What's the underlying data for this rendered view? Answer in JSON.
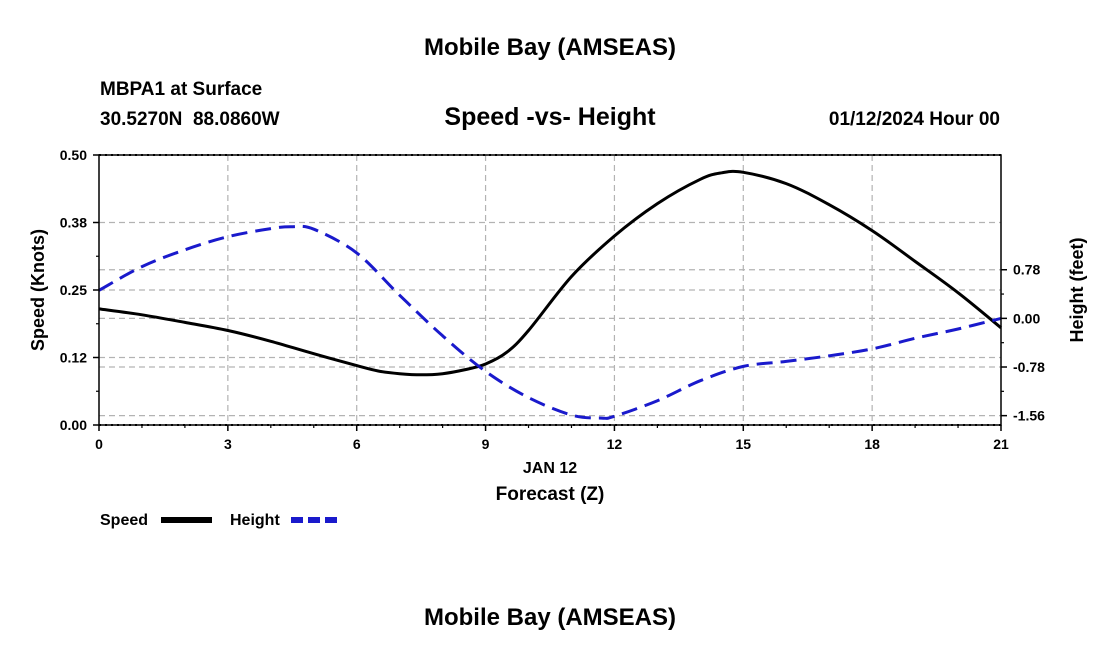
{
  "page_title": "Mobile Bay (AMSEAS)",
  "footer_title": "Mobile Bay (AMSEAS)",
  "station": {
    "name": "MBPA1 at Surface",
    "coordinates": "30.5270N  88.0860W"
  },
  "date_label": "01/12/2024 Hour 00",
  "chart_data": {
    "type": "line",
    "title": "Speed -vs- Height",
    "xlabel": "Forecast (Z)",
    "x_date_label": "JAN 12",
    "ylabel": "Speed (Knots)",
    "y2label": "Height (feet)",
    "xlim": [
      0,
      21
    ],
    "ylim": [
      0,
      0.5
    ],
    "y2lim": [
      -1.71,
      2.62
    ],
    "grid": true,
    "legend_position": "bottom-left",
    "x_ticks": [
      0,
      3,
      6,
      9,
      12,
      15,
      18,
      21
    ],
    "x_tick_labels": [
      "0",
      "3",
      "6",
      "9",
      "12",
      "15",
      "18",
      "21"
    ],
    "y_ticks": [
      0,
      0.125,
      0.25,
      0.375,
      0.5
    ],
    "y_tick_labels": [
      "0.00",
      "0.12",
      "0.25",
      "0.38",
      "0.50"
    ],
    "y2_ticks": [
      -1.56,
      -0.78,
      0,
      0.78
    ],
    "y2_tick_labels": [
      "-1.56",
      "-0.78",
      "0.00",
      "0.78"
    ],
    "series": [
      {
        "name": "Speed",
        "axis": "left",
        "color": "#000000",
        "dash": "solid",
        "x": [
          0,
          1,
          2,
          3,
          4,
          5,
          6,
          6.5,
          7,
          7.5,
          8,
          8.5,
          9,
          9.5,
          10,
          11,
          12,
          13,
          14,
          14.5,
          15,
          16,
          17,
          18,
          19,
          20,
          21
        ],
        "values": [
          0.215,
          0.204,
          0.19,
          0.175,
          0.155,
          0.132,
          0.11,
          0.1,
          0.095,
          0.093,
          0.095,
          0.102,
          0.113,
          0.135,
          0.175,
          0.275,
          0.35,
          0.41,
          0.455,
          0.467,
          0.468,
          0.447,
          0.408,
          0.36,
          0.303,
          0.245,
          0.18
        ]
      },
      {
        "name": "Height",
        "axis": "right",
        "color": "#1a1acc",
        "dash": "dashed",
        "x": [
          0,
          1,
          2,
          3,
          4,
          4.5,
          5,
          6,
          7,
          8,
          9,
          10,
          11,
          11.7,
          12,
          13,
          14,
          15,
          16,
          17,
          18,
          19,
          20,
          21
        ],
        "values": [
          0.45,
          0.83,
          1.1,
          1.31,
          1.44,
          1.47,
          1.43,
          1.05,
          0.37,
          -0.28,
          -0.85,
          -1.27,
          -1.55,
          -1.6,
          -1.57,
          -1.32,
          -1.0,
          -0.77,
          -0.69,
          -0.6,
          -0.49,
          -0.32,
          -0.17,
          0.0
        ]
      }
    ]
  }
}
